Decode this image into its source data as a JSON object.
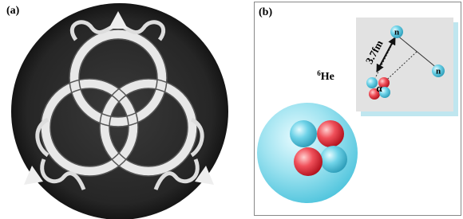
{
  "panel_a": {
    "label": "(a)"
  },
  "panel_b": {
    "label": "(b)",
    "nucleus": {
      "mass_number": "6",
      "element": "He"
    },
    "inset": {
      "neutrons": [
        "n",
        "n"
      ],
      "distance": "3.7fm",
      "core": "α"
    }
  }
}
